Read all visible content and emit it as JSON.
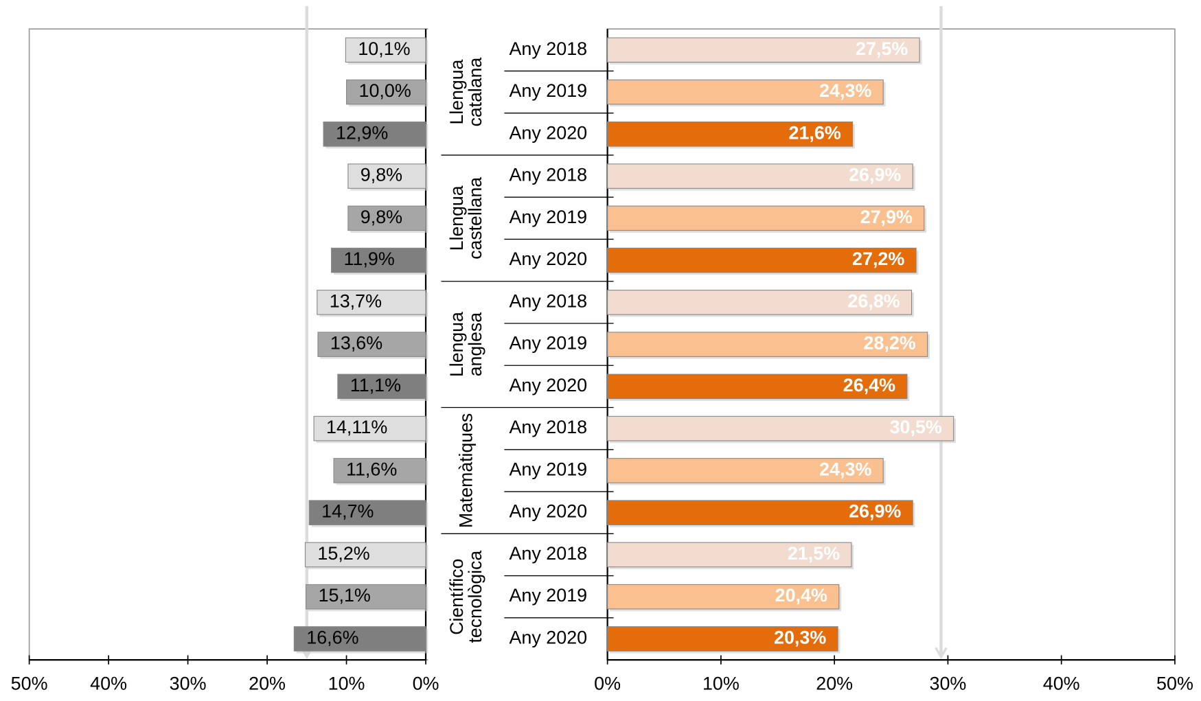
{
  "chart_data": {
    "type": "bar",
    "groups": [
      {
        "lines": [
          "Llengua",
          "catalana"
        ]
      },
      {
        "lines": [
          "Llengua",
          "castellana"
        ]
      },
      {
        "lines": [
          "Llengua",
          "anglesa"
        ]
      },
      {
        "lines": [
          "Matemàtiques"
        ]
      },
      {
        "lines": [
          "Científico",
          "tecnològica"
        ]
      }
    ],
    "categories": [
      "Any 2018",
      "Any 2019",
      "Any 2020",
      "Any 2018",
      "Any 2019",
      "Any 2020",
      "Any 2018",
      "Any 2019",
      "Any 2020",
      "Any 2018",
      "Any 2019",
      "Any 2020",
      "Any 2018",
      "Any 2019",
      "Any 2020"
    ],
    "panels": [
      {
        "values": [
          10.1,
          10.0,
          12.9,
          9.8,
          9.8,
          11.9,
          13.7,
          13.6,
          11.1,
          14.11,
          11.6,
          14.7,
          15.2,
          15.1,
          16.6
        ],
        "value_labels": [
          "10,1%",
          "10,0%",
          "12,9%",
          "9,8%",
          "9,8%",
          "11,9%",
          "13,7%",
          "13,6%",
          "11,1%",
          "14,11%",
          "11,6%",
          "14,7%",
          "15,2%",
          "15,1%",
          "16,6%"
        ],
        "colors": [
          "#dedede",
          "#a6a6a6",
          "#7f7f7f"
        ],
        "xlim": [
          50,
          0
        ],
        "xticks": [
          {
            "value": 50,
            "label": "50%"
          },
          {
            "value": 40,
            "label": "40%"
          },
          {
            "value": 30,
            "label": "30%"
          },
          {
            "value": 20,
            "label": "20%"
          },
          {
            "value": 10,
            "label": "10%"
          },
          {
            "value": 0,
            "label": "0%"
          }
        ],
        "reference": 15.0
      },
      {
        "values": [
          27.5,
          24.3,
          21.6,
          26.9,
          27.9,
          27.2,
          26.8,
          28.2,
          26.4,
          30.5,
          24.3,
          26.9,
          21.5,
          20.4,
          20.3
        ],
        "value_labels": [
          "27,5%",
          "24,3%",
          "21,6%",
          "26,9%",
          "27,9%",
          "27,2%",
          "26,8%",
          "28,2%",
          "26,4%",
          "30,5%",
          "24,3%",
          "26,9%",
          "21,5%",
          "20,4%",
          "20,3%"
        ],
        "colors": [
          "#f2dccf",
          "#fac090",
          "#e46c0a"
        ],
        "xlim": [
          0,
          50
        ],
        "xticks": [
          {
            "value": 0,
            "label": "0%"
          },
          {
            "value": 10,
            "label": "10%"
          },
          {
            "value": 20,
            "label": "20%"
          },
          {
            "value": 30,
            "label": "30%"
          },
          {
            "value": 40,
            "label": "40%"
          },
          {
            "value": 50,
            "label": "50%"
          }
        ],
        "reference": 29.4
      }
    ]
  }
}
